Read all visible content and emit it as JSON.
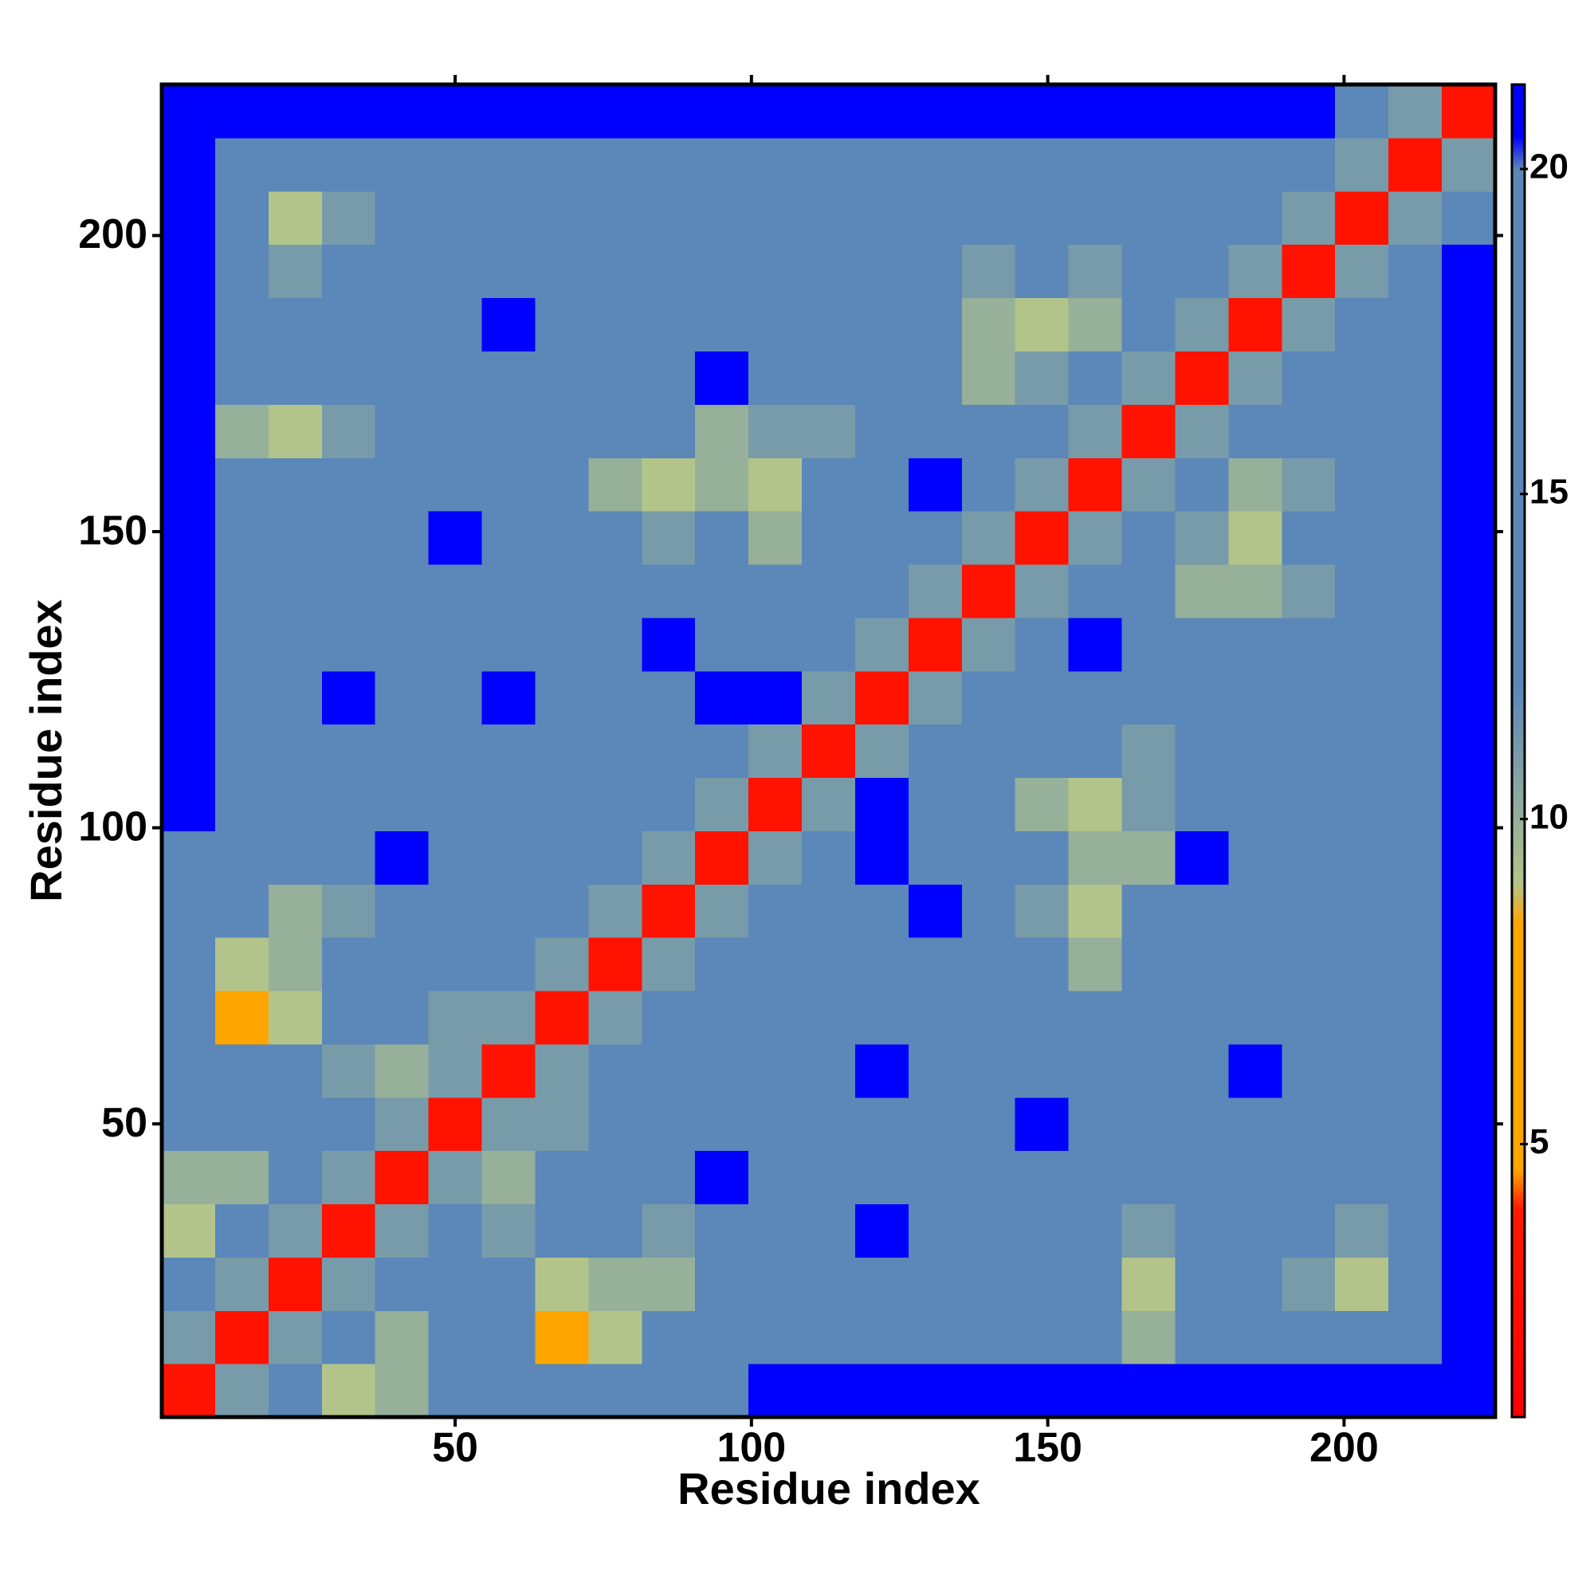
{
  "chart_data": {
    "type": "heatmap",
    "x_label": "Residue index",
    "y_label": "Residue index",
    "x": [
      5,
      14,
      23,
      32,
      41,
      50,
      59,
      68,
      77,
      86,
      95,
      104,
      113,
      122,
      131,
      140,
      149,
      158,
      167,
      176,
      185,
      194,
      203,
      212,
      221
    ],
    "y": [
      5,
      14,
      23,
      32,
      41,
      50,
      59,
      68,
      77,
      86,
      95,
      104,
      113,
      122,
      131,
      140,
      149,
      158,
      167,
      176,
      185,
      194,
      203,
      212,
      221
    ],
    "values": [
      [
        3,
        11,
        14,
        9,
        10,
        17,
        17,
        17,
        17,
        17,
        17,
        21,
        21,
        21,
        21,
        21,
        21,
        21,
        21,
        21,
        21,
        21,
        21,
        21,
        21
      ],
      [
        11,
        3,
        11,
        14,
        10,
        17,
        17,
        8,
        9,
        17,
        17,
        17,
        17,
        17,
        17,
        17,
        17,
        17,
        10,
        17,
        17,
        17,
        17,
        17,
        21
      ],
      [
        14,
        11,
        3,
        11,
        14,
        17,
        17,
        9,
        10,
        10,
        17,
        17,
        17,
        17,
        17,
        17,
        17,
        17,
        9,
        17,
        17,
        11,
        9,
        17,
        21
      ],
      [
        9,
        14,
        11,
        3,
        11,
        14,
        11,
        17,
        17,
        11,
        17,
        17,
        17,
        21,
        17,
        17,
        17,
        17,
        11,
        17,
        17,
        17,
        11,
        17,
        21
      ],
      [
        10,
        10,
        14,
        11,
        3,
        11,
        10,
        17,
        17,
        17,
        21,
        17,
        17,
        17,
        17,
        17,
        17,
        17,
        17,
        17,
        17,
        17,
        17,
        17,
        21
      ],
      [
        17,
        17,
        17,
        14,
        11,
        3,
        11,
        11,
        17,
        17,
        17,
        17,
        17,
        17,
        17,
        17,
        21,
        17,
        17,
        17,
        17,
        17,
        17,
        17,
        21
      ],
      [
        17,
        17,
        17,
        11,
        10,
        11,
        3,
        11,
        14,
        17,
        17,
        17,
        17,
        21,
        17,
        17,
        17,
        17,
        17,
        17,
        21,
        17,
        17,
        17,
        21
      ],
      [
        17,
        8,
        9,
        17,
        17,
        11,
        11,
        3,
        11,
        14,
        17,
        17,
        17,
        17,
        17,
        17,
        17,
        17,
        17,
        17,
        17,
        17,
        17,
        17,
        21
      ],
      [
        17,
        9,
        10,
        17,
        17,
        17,
        14,
        11,
        3,
        11,
        14,
        17,
        17,
        17,
        17,
        17,
        17,
        10,
        17,
        17,
        17,
        17,
        17,
        17,
        21
      ],
      [
        17,
        17,
        10,
        11,
        17,
        17,
        17,
        14,
        11,
        3,
        11,
        14,
        17,
        12,
        21,
        17,
        11,
        9,
        17,
        17,
        17,
        17,
        17,
        17,
        21
      ],
      [
        17,
        17,
        17,
        17,
        21,
        17,
        17,
        17,
        14,
        11,
        3,
        11,
        14,
        21,
        17,
        17,
        17,
        10,
        10,
        21,
        17,
        17,
        17,
        17,
        21
      ],
      [
        21,
        17,
        17,
        17,
        17,
        17,
        17,
        17,
        17,
        14,
        11,
        3,
        11,
        21,
        17,
        17,
        10,
        9,
        11,
        17,
        17,
        17,
        17,
        17,
        21
      ],
      [
        21,
        17,
        17,
        17,
        17,
        17,
        17,
        17,
        17,
        17,
        14,
        11,
        3,
        11,
        14,
        17,
        17,
        17,
        11,
        17,
        17,
        17,
        17,
        17,
        21
      ],
      [
        21,
        17,
        17,
        21,
        17,
        17,
        21,
        17,
        17,
        12,
        21,
        21,
        11,
        3,
        11,
        14,
        17,
        17,
        17,
        17,
        17,
        17,
        17,
        17,
        21
      ],
      [
        21,
        17,
        17,
        17,
        17,
        17,
        17,
        17,
        17,
        21,
        17,
        17,
        14,
        11,
        3,
        11,
        14,
        21,
        17,
        17,
        17,
        17,
        17,
        17,
        21
      ],
      [
        21,
        17,
        17,
        17,
        17,
        17,
        17,
        17,
        17,
        17,
        17,
        17,
        17,
        14,
        11,
        3,
        11,
        14,
        17,
        10,
        10,
        11,
        17,
        17,
        21
      ],
      [
        21,
        17,
        17,
        17,
        17,
        21,
        17,
        17,
        17,
        11,
        17,
        10,
        17,
        17,
        14,
        11,
        3,
        11,
        14,
        11,
        9,
        17,
        17,
        17,
        21
      ],
      [
        21,
        17,
        17,
        17,
        17,
        17,
        17,
        17,
        10,
        9,
        10,
        9,
        17,
        17,
        21,
        14,
        11,
        3,
        11,
        14,
        10,
        11,
        17,
        17,
        21
      ],
      [
        21,
        10,
        9,
        11,
        17,
        17,
        17,
        17,
        17,
        17,
        10,
        11,
        11,
        17,
        17,
        17,
        14,
        11,
        3,
        11,
        14,
        17,
        17,
        17,
        21
      ],
      [
        21,
        17,
        17,
        17,
        17,
        17,
        17,
        17,
        17,
        17,
        21,
        17,
        17,
        17,
        17,
        10,
        11,
        14,
        11,
        3,
        11,
        14,
        17,
        17,
        21
      ],
      [
        21,
        17,
        17,
        17,
        17,
        17,
        21,
        17,
        17,
        17,
        17,
        17,
        17,
        17,
        17,
        10,
        9,
        10,
        14,
        11,
        3,
        11,
        14,
        17,
        21
      ],
      [
        21,
        17,
        11,
        17,
        17,
        17,
        17,
        17,
        17,
        17,
        17,
        17,
        17,
        17,
        17,
        11,
        17,
        11,
        17,
        14,
        11,
        3,
        11,
        14,
        21
      ],
      [
        21,
        17,
        9,
        11,
        17,
        17,
        17,
        17,
        17,
        17,
        17,
        17,
        17,
        17,
        17,
        17,
        17,
        17,
        17,
        17,
        14,
        11,
        3,
        11,
        14
      ],
      [
        21,
        17,
        17,
        17,
        17,
        17,
        17,
        17,
        17,
        17,
        17,
        17,
        17,
        17,
        17,
        17,
        17,
        17,
        17,
        17,
        17,
        14,
        11,
        3,
        11
      ],
      [
        21,
        21,
        21,
        21,
        21,
        21,
        21,
        21,
        21,
        21,
        21,
        21,
        21,
        21,
        21,
        21,
        21,
        21,
        21,
        21,
        21,
        21,
        14,
        11,
        3
      ]
    ],
    "xlim": [
      0.5,
      225.5
    ],
    "ylim": [
      0.5,
      225.5
    ],
    "xticks": [
      50,
      100,
      150,
      200
    ],
    "yticks": [
      50,
      100,
      150,
      200
    ],
    "zlim": [
      0.8,
      21.3
    ],
    "zticks": [
      5,
      10,
      15,
      20
    ],
    "colorscale": [
      {
        "value": 0.8,
        "color": "#ff0000"
      },
      {
        "value": 4,
        "color": "#ff1a00"
      },
      {
        "value": 4.6,
        "color": "#ffa500"
      },
      {
        "value": 8.4,
        "color": "#ffa500"
      },
      {
        "value": 9,
        "color": "#b3c48a"
      },
      {
        "value": 12,
        "color": "#5b87b9"
      },
      {
        "value": 20,
        "color": "#5b87b9"
      },
      {
        "value": 20.5,
        "color": "#0000ff"
      },
      {
        "value": 21.3,
        "color": "#0000ff"
      }
    ]
  }
}
